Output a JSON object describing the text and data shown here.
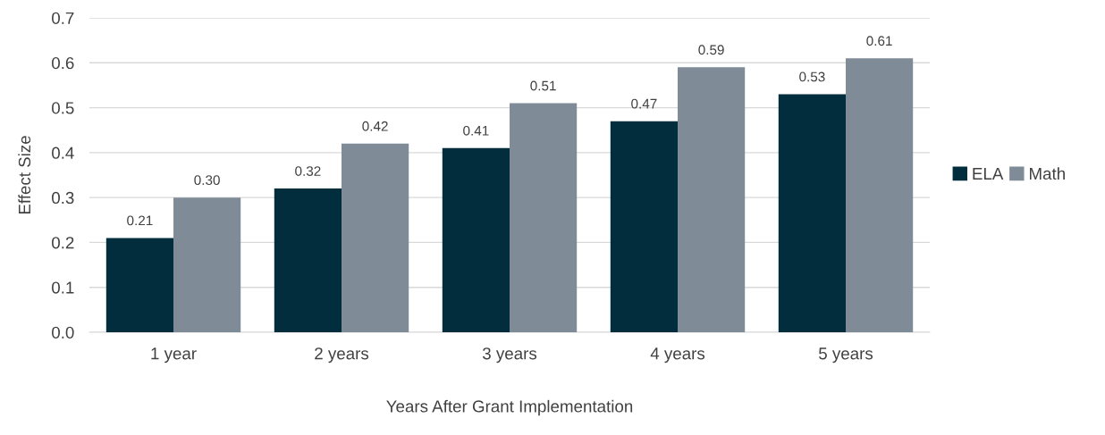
{
  "chart_data": {
    "type": "bar",
    "xlabel": "Years After Grant Implementation",
    "ylabel": "Effect Size",
    "categories": [
      "1 year",
      "2 years",
      "3 years",
      "4 years",
      "5 years"
    ],
    "series": [
      {
        "name": "ELA",
        "color": "#022d3c",
        "values": [
          0.21,
          0.32,
          0.41,
          0.47,
          0.53
        ],
        "value_labels": [
          "0.21",
          "0.32",
          "0.41",
          "0.47",
          "0.53"
        ]
      },
      {
        "name": "Math",
        "color": "#7f8c98",
        "values": [
          0.3,
          0.42,
          0.51,
          0.59,
          0.61
        ],
        "value_labels": [
          "0.30",
          "0.42",
          "0.51",
          "0.59",
          "0.61"
        ]
      }
    ],
    "ylim": [
      0,
      0.7
    ],
    "yticks": [
      {
        "value": 0,
        "label": "0.0"
      },
      {
        "value": 0.1,
        "label": "0.1"
      },
      {
        "value": 0.2,
        "label": "0.2"
      },
      {
        "value": 0.3,
        "label": "0.3"
      },
      {
        "value": 0.4,
        "label": "0.4"
      },
      {
        "value": 0.5,
        "label": "0.5"
      },
      {
        "value": 0.6,
        "label": "0.6"
      },
      {
        "value": 0.7,
        "label": "0.7"
      }
    ],
    "grid": "y",
    "legend": "right"
  }
}
